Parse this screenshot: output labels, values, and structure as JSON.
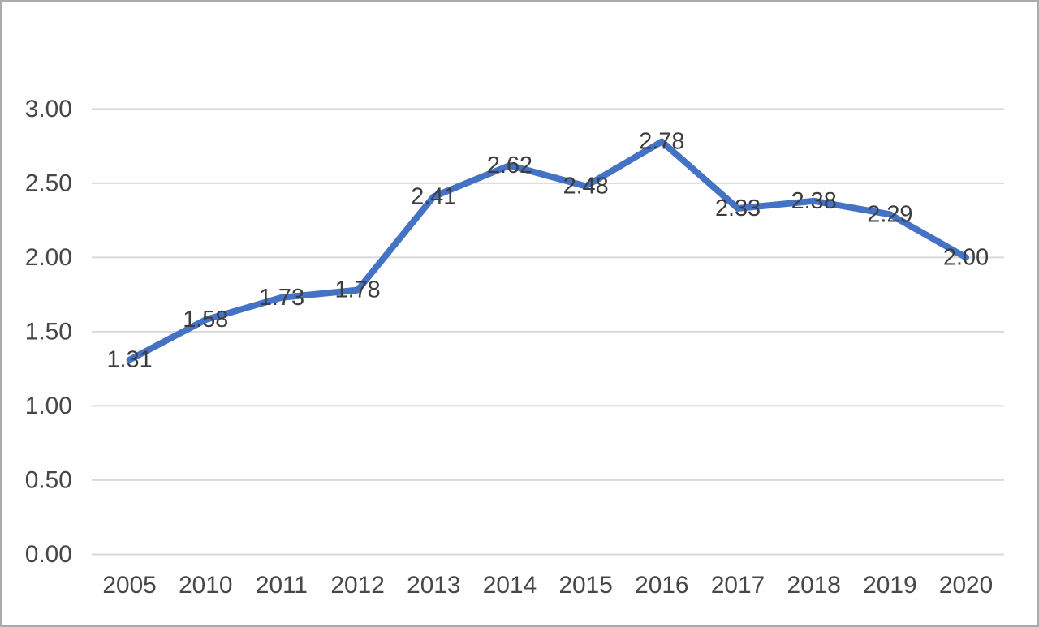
{
  "chart_data": {
    "type": "line",
    "categories": [
      "2005",
      "2010",
      "2011",
      "2012",
      "2013",
      "2014",
      "2015",
      "2016",
      "2017",
      "2018",
      "2019",
      "2020"
    ],
    "series": [
      {
        "name": "value",
        "values": [
          1.31,
          1.58,
          1.73,
          1.78,
          2.41,
          2.62,
          2.48,
          2.78,
          2.33,
          2.38,
          2.29,
          2.0
        ],
        "labels": [
          "1.31",
          "1.58",
          "1.73",
          "1.78",
          "2.41",
          "2.62",
          "2.48",
          "2.78",
          "2.33",
          "2.38",
          "2.29",
          "2.00"
        ]
      }
    ],
    "title": "",
    "xlabel": "",
    "ylabel": "",
    "ylim": [
      0,
      3
    ],
    "y_ticks": [
      "0.00",
      "0.50",
      "1.00",
      "1.50",
      "2.00",
      "2.50",
      "3.00"
    ],
    "y_tick_values": [
      0,
      0.5,
      1.0,
      1.5,
      2.0,
      2.5,
      3.0
    ],
    "grid": "horizontal",
    "legend": "none",
    "data_label_position": "center",
    "colors": {
      "line": "#4472C4",
      "gridline": "#d9d9d9",
      "tick_text": "#474747",
      "data_label_text": "#3d3d3d",
      "frame_border": "#ababab",
      "background": "#ffffff"
    }
  }
}
